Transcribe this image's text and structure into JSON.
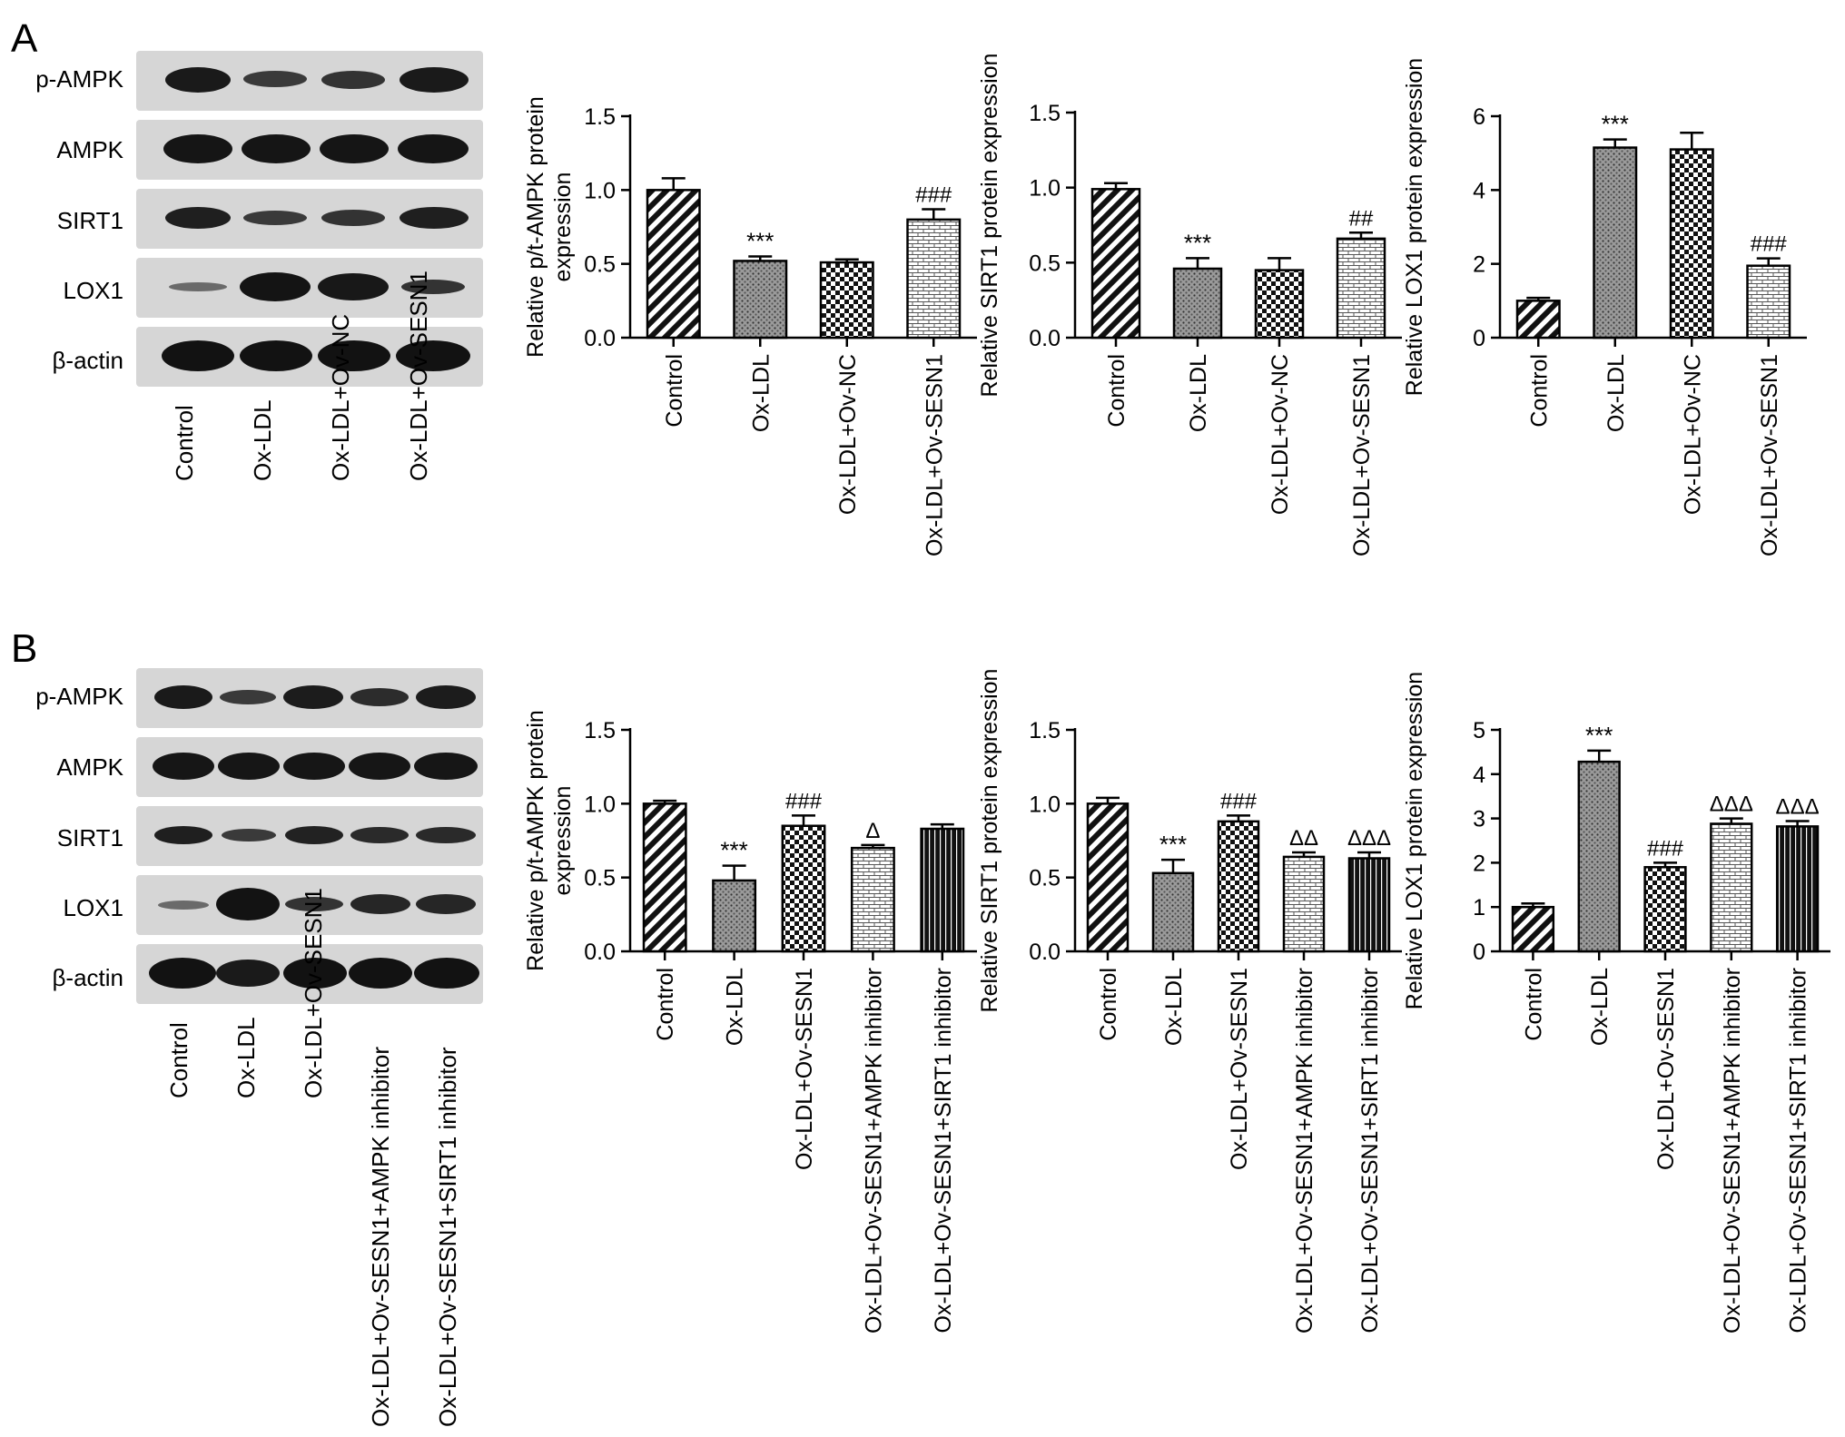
{
  "panels": [
    {
      "letter": "A",
      "blot": {
        "rows": [
          "p-AMPK",
          "AMPK",
          "SIRT1",
          "LOX1",
          "β-actin"
        ],
        "lanes": [
          "Control",
          "Ox-LDL",
          "Ox-LDL+Ov-NC",
          "Ox-LDL+Ov-SESN1"
        ]
      }
    },
    {
      "letter": "B",
      "blot": {
        "rows": [
          "p-AMPK",
          "AMPK",
          "SIRT1",
          "LOX1",
          "β-actin"
        ],
        "lanes": [
          "Control",
          "Ox-LDL",
          "Ox-LDL+Ov-SESN1",
          "Ox-LDL+Ov-SESN1+AMPK inhibitor",
          "Ox-LDL+Ov-SESN1+SIRT1 inhibitor"
        ]
      }
    }
  ],
  "chart_data": [
    {
      "type": "bar",
      "panel": "A",
      "categories": [
        "Control",
        "Ox-LDL",
        "Ox-LDL+Ov-NC",
        "Ox-LDL+Ov-SESN1"
      ],
      "values": [
        1.0,
        0.52,
        0.51,
        0.8
      ],
      "errors": [
        0.08,
        0.03,
        0.02,
        0.07
      ],
      "annotations": [
        "",
        "***",
        "",
        "###"
      ],
      "patterns": [
        "diag",
        "dots",
        "grid",
        "brick"
      ],
      "ylabel": "Relative p/t-AMPK protein expression",
      "ylim": [
        0,
        1.5
      ],
      "yticks": [
        "0.0",
        "0.5",
        "1.0",
        "1.5"
      ],
      "tickvals": [
        0,
        0.5,
        1.0,
        1.5
      ]
    },
    {
      "type": "bar",
      "panel": "A",
      "categories": [
        "Control",
        "Ox-LDL",
        "Ox-LDL+Ov-NC",
        "Ox-LDL+Ov-SESN1"
      ],
      "values": [
        0.99,
        0.46,
        0.45,
        0.66
      ],
      "errors": [
        0.04,
        0.07,
        0.08,
        0.04
      ],
      "annotations": [
        "",
        "***",
        "",
        "##"
      ],
      "patterns": [
        "diag",
        "dots",
        "grid",
        "brick"
      ],
      "ylabel": "Relative SIRT1 protein expression",
      "ylim": [
        0,
        1.5
      ],
      "yticks": [
        "0.0",
        "0.5",
        "1.0",
        "1.5"
      ],
      "tickvals": [
        0,
        0.5,
        1.0,
        1.5
      ]
    },
    {
      "type": "bar",
      "panel": "A",
      "categories": [
        "Control",
        "Ox-LDL",
        "Ox-LDL+Ov-NC",
        "Ox-LDL+Ov-SESN1"
      ],
      "values": [
        1.0,
        5.15,
        5.1,
        1.95
      ],
      "errors": [
        0.08,
        0.22,
        0.45,
        0.2
      ],
      "annotations": [
        "",
        "***",
        "",
        "###"
      ],
      "patterns": [
        "diag",
        "dots",
        "grid",
        "brick"
      ],
      "ylabel": "Relative LOX1 protein expression",
      "ylim": [
        0,
        6
      ],
      "yticks": [
        "0",
        "2",
        "4",
        "6"
      ],
      "tickvals": [
        0,
        2,
        4,
        6
      ]
    },
    {
      "type": "bar",
      "panel": "B",
      "categories": [
        "Control",
        "Ox-LDL",
        "Ox-LDL+Ov-SESN1",
        "Ox-LDL+Ov-SESN1+AMPK inhibitor",
        "Ox-LDL+Ov-SESN1+SIRT1 inhibitor"
      ],
      "values": [
        1.0,
        0.48,
        0.85,
        0.7,
        0.83
      ],
      "errors": [
        0.02,
        0.1,
        0.07,
        0.02,
        0.03
      ],
      "annotations": [
        "",
        "***",
        "###",
        "Δ",
        ""
      ],
      "patterns": [
        "diag",
        "dots",
        "grid",
        "brick",
        "vlines"
      ],
      "ylabel": "Relative p/t-AMPK protein expression",
      "ylim": [
        0,
        1.5
      ],
      "yticks": [
        "0.0",
        "0.5",
        "1.0",
        "1.5"
      ],
      "tickvals": [
        0,
        0.5,
        1.0,
        1.5
      ]
    },
    {
      "type": "bar",
      "panel": "B",
      "categories": [
        "Control",
        "Ox-LDL",
        "Ox-LDL+Ov-SESN1",
        "Ox-LDL+Ov-SESN1+AMPK inhibitor",
        "Ox-LDL+Ov-SESN1+SIRT1 inhibitor"
      ],
      "values": [
        1.0,
        0.53,
        0.88,
        0.64,
        0.63
      ],
      "errors": [
        0.04,
        0.09,
        0.04,
        0.03,
        0.04
      ],
      "annotations": [
        "",
        "***",
        "###",
        "ΔΔ",
        "ΔΔΔ"
      ],
      "patterns": [
        "diag",
        "dots",
        "grid",
        "brick",
        "vlines"
      ],
      "ylabel": "Relative SIRT1 protein expression",
      "ylim": [
        0,
        1.5
      ],
      "yticks": [
        "0.0",
        "0.5",
        "1.0",
        "1.5"
      ],
      "tickvals": [
        0,
        0.5,
        1.0,
        1.5
      ]
    },
    {
      "type": "bar",
      "panel": "B",
      "categories": [
        "Control",
        "Ox-LDL",
        "Ox-LDL+Ov-SESN1",
        "Ox-LDL+Ov-SESN1+AMPK inhibitor",
        "Ox-LDL+Ov-SESN1+SIRT1 inhibitor"
      ],
      "values": [
        1.0,
        4.28,
        1.9,
        2.88,
        2.82
      ],
      "errors": [
        0.08,
        0.25,
        0.1,
        0.12,
        0.12
      ],
      "annotations": [
        "",
        "***",
        "###",
        "ΔΔΔ",
        "ΔΔΔ"
      ],
      "patterns": [
        "diag",
        "dots",
        "grid",
        "brick",
        "vlines"
      ],
      "ylabel": "Relative LOX1 protein expression",
      "ylim": [
        0,
        5
      ],
      "yticks": [
        "0",
        "1",
        "2",
        "3",
        "4",
        "5"
      ],
      "tickvals": [
        0,
        1,
        2,
        3,
        4,
        5
      ]
    }
  ]
}
